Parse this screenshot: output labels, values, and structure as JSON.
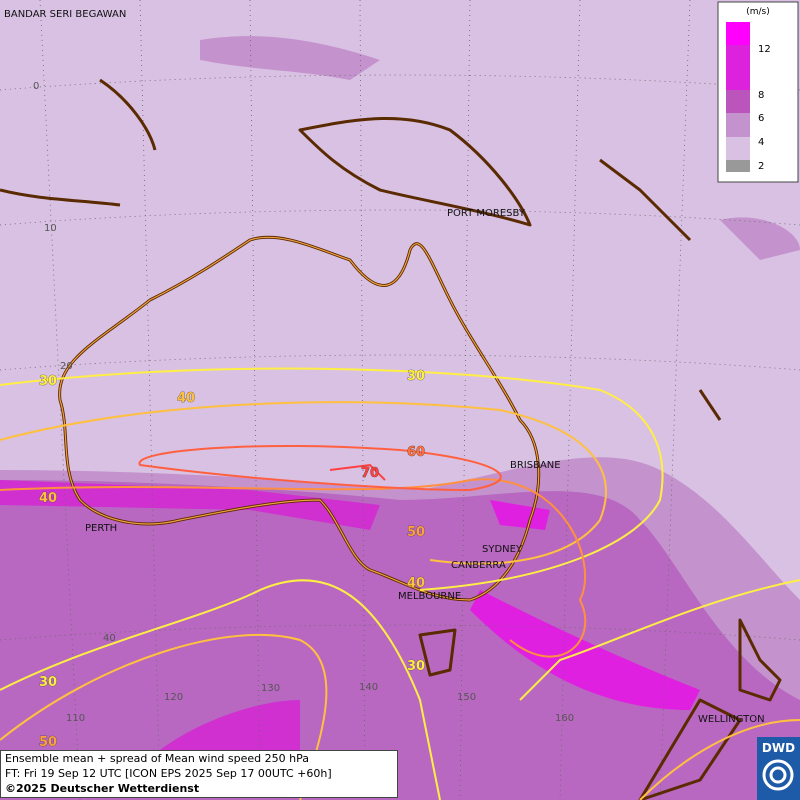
{
  "map": {
    "cities": [
      "BANDAR SERI BEGAWAN",
      "PORT MORESBY",
      "BRISBANE",
      "SYDNEY",
      "CANBERRA",
      "MELBOURNE",
      "PERTH",
      "WELLINGTON"
    ],
    "latitudes": [
      0,
      10,
      20,
      40
    ],
    "longitudes": [
      110,
      120,
      130,
      140,
      150,
      160
    ],
    "contour_labels": [
      30,
      40,
      30,
      60,
      70,
      40,
      50,
      40,
      30,
      30,
      50
    ],
    "legend": {
      "unit": "(m/s)",
      "ticks": [
        12,
        8,
        6,
        4,
        2
      ]
    },
    "footer": [
      "Ensemble mean + spread of Mean wind speed 250 hPa",
      "FT: Fri 19 Sep 12 UTC [ICON EPS 2025 Sep 17 00UTC +60h]",
      "©2025 Deutscher Wetterdienst"
    ],
    "logo": "DWD"
  }
}
